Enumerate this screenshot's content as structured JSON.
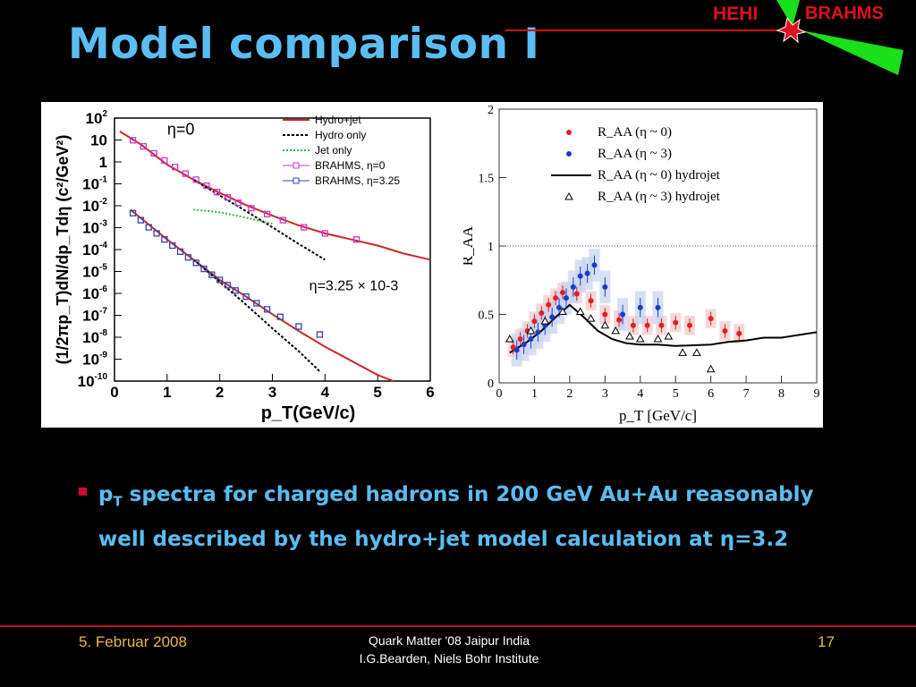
{
  "slide": {
    "title": "Model comparison I",
    "logo_left": "HEHI",
    "logo_right": "BRAHMS",
    "bullet_prefix": "p",
    "bullet_sub": "T",
    "bullet_text_1": " spectra for charged hadrons  in 200 GeV Au+Au reasonably",
    "bullet_text_2": "well described by the hydro+jet model calculation at η=3.2",
    "footer_date": "5. Februar 2008",
    "footer_center_1": "Quark Matter '08 Jaipur India",
    "footer_center_2": "I.G.Bearden, Niels Bohr Institute",
    "footer_page": "17"
  },
  "chart_data": [
    {
      "type": "scatter",
      "xlabel": "p_T(GeV/c)",
      "ylabel": "(1/2πp_T)dN/dp_Tdη (c²/GeV²)",
      "xlim": [
        0,
        6
      ],
      "ylim": [
        1e-10,
        1000
      ],
      "log_y": true,
      "x_ticks": [
        "0",
        "1",
        "2",
        "3",
        "4",
        "5",
        "6"
      ],
      "y_ticks": [
        "10^2",
        "10",
        "1",
        "10^-1",
        "10^-2",
        "10^-3",
        "10^-4",
        "10^-5",
        "10^-6",
        "10^-7",
        "10^-8",
        "10^-9",
        "10^-10"
      ],
      "annotations": [
        "η=0",
        "η=3.25 × 10^-3"
      ],
      "legend": [
        "Hydro+jet",
        "Hydro only",
        "Jet only",
        "BRAHMS, η=0",
        "BRAHMS, η=3.25"
      ],
      "series": [
        {
          "name": "BRAHMS, η=0",
          "x": [
            0.35,
            0.55,
            0.75,
            0.95,
            1.15,
            1.35,
            1.55,
            1.75,
            1.95,
            2.15,
            2.35,
            2.6,
            2.9,
            3.2,
            3.6,
            4.0,
            4.6
          ],
          "y": [
            80,
            40,
            18,
            8,
            3.8,
            1.8,
            0.9,
            0.45,
            0.22,
            0.12,
            0.065,
            0.035,
            0.018,
            0.009,
            0.004,
            0.002,
            0.001
          ]
        },
        {
          "name": "BRAHMS, η=3.25",
          "x": [
            0.35,
            0.5,
            0.65,
            0.8,
            0.95,
            1.1,
            1.25,
            1.4,
            1.55,
            1.7,
            1.85,
            2.0,
            2.15,
            2.3,
            2.5,
            2.7,
            2.9,
            3.15,
            3.5,
            3.9
          ],
          "y": [
            0.02,
            0.009,
            0.004,
            0.002,
            0.001,
            0.0005,
            0.00025,
            0.00013,
            7e-05,
            3.5e-05,
            1.8e-05,
            1e-05,
            5.5e-06,
            3e-06,
            1.5e-06,
            7e-07,
            3.5e-07,
            1.5e-07,
            5e-08,
            2e-08
          ]
        }
      ]
    },
    {
      "type": "scatter",
      "xlabel": "p_T [GeV/c]",
      "ylabel": "R_AA",
      "xlim": [
        0,
        9
      ],
      "ylim": [
        0,
        2
      ],
      "x_ticks": [
        "0",
        "1",
        "2",
        "3",
        "4",
        "5",
        "6",
        "7",
        "8",
        "9"
      ],
      "y_ticks": [
        "0",
        "0.5",
        "1",
        "1.5",
        "2"
      ],
      "legend": [
        "R_AA (η ~ 0)",
        "R_AA (η ~ 3)",
        "R_AA (η ~ 0) hydrojet",
        "R_AA (η ~ 3) hydrojet"
      ],
      "series": [
        {
          "name": "R_AA (η ~ 0)",
          "x": [
            0.4,
            0.6,
            0.8,
            1.0,
            1.2,
            1.4,
            1.6,
            1.8,
            2.2,
            2.6,
            3.0,
            3.4,
            3.8,
            4.2,
            4.6,
            5.0,
            5.4,
            6.0,
            6.4,
            6.8
          ],
          "y": [
            0.26,
            0.32,
            0.38,
            0.45,
            0.51,
            0.57,
            0.62,
            0.66,
            0.65,
            0.6,
            0.5,
            0.46,
            0.42,
            0.42,
            0.42,
            0.44,
            0.42,
            0.47,
            0.38,
            0.36
          ]
        },
        {
          "name": "R_AA (η ~ 3)",
          "x": [
            0.5,
            0.7,
            0.9,
            1.1,
            1.3,
            1.5,
            1.7,
            1.9,
            2.1,
            2.3,
            2.5,
            2.7,
            3.0,
            3.5,
            4.0,
            4.5
          ],
          "y": [
            0.24,
            0.28,
            0.32,
            0.37,
            0.42,
            0.48,
            0.55,
            0.62,
            0.7,
            0.78,
            0.8,
            0.86,
            0.7,
            0.5,
            0.55,
            0.55
          ]
        },
        {
          "name": "R_AA (η ~ 3) hydrojet",
          "x": [
            0.3,
            0.9,
            1.3,
            1.8,
            2.3,
            2.6,
            3.0,
            3.3,
            3.7,
            4.0,
            4.5,
            4.8,
            5.2,
            5.6,
            6.0
          ],
          "y": [
            0.32,
            0.38,
            0.45,
            0.52,
            0.52,
            0.47,
            0.42,
            0.38,
            0.34,
            0.32,
            0.32,
            0.34,
            0.22,
            0.22,
            0.1
          ]
        }
      ],
      "curve_hydrojet_eta0": {
        "x": [
          0.3,
          0.8,
          1.2,
          1.6,
          2.0,
          2.4,
          2.8,
          3.2,
          3.6,
          4.0,
          4.5,
          5.0,
          6.0,
          6.5,
          7.0,
          7.5,
          8.0,
          8.5,
          9.0
        ],
        "y": [
          0.22,
          0.3,
          0.38,
          0.48,
          0.57,
          0.48,
          0.38,
          0.32,
          0.29,
          0.28,
          0.28,
          0.27,
          0.28,
          0.3,
          0.31,
          0.33,
          0.33,
          0.35,
          0.37
        ]
      }
    }
  ]
}
